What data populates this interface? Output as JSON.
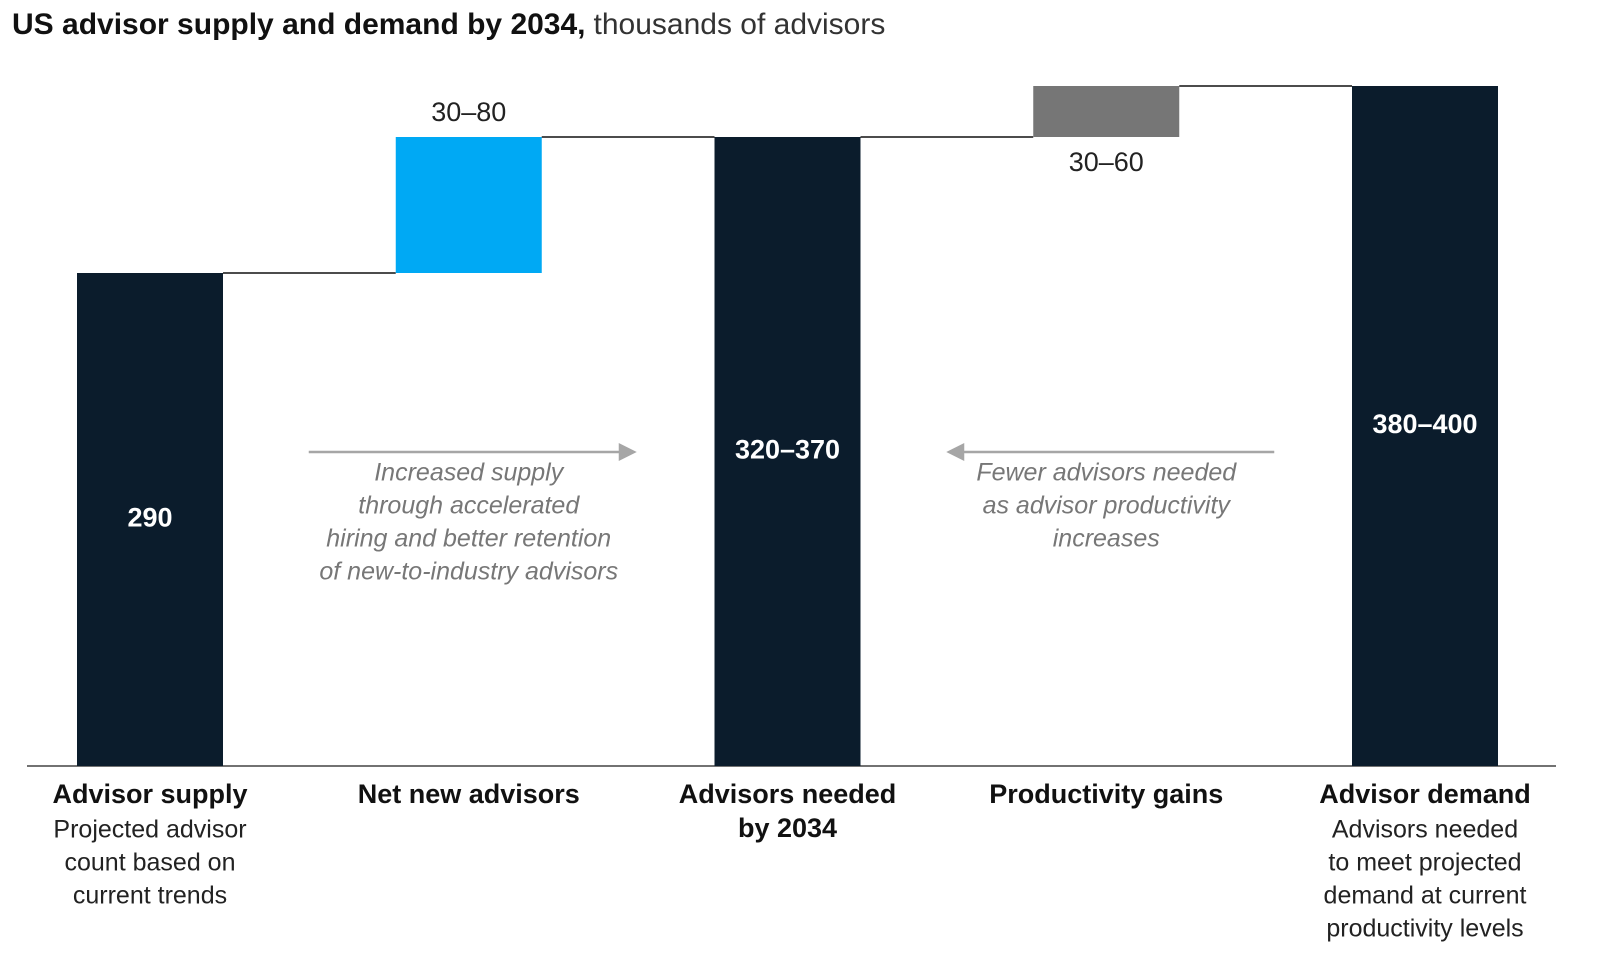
{
  "chart_data": {
    "type": "waterfall",
    "title": "US advisor supply and demand by 2034,",
    "subtitle": "thousands of advisors",
    "categories": [
      "Advisor supply",
      "Net new advisors",
      "Advisors needed by 2034",
      "Productivity gains",
      "Advisor demand"
    ],
    "category_lines": [
      [
        "Advisor supply"
      ],
      [
        "Net new advisors"
      ],
      [
        "Advisors needed",
        "by 2034"
      ],
      [
        "Productivity gains"
      ],
      [
        "Advisor demand"
      ]
    ],
    "category_notes": [
      [
        "Projected advisor",
        "count based on",
        "current trends"
      ],
      [],
      [],
      [],
      [
        "Advisors needed",
        "to meet projected",
        "demand at current",
        "productivity levels"
      ]
    ],
    "measures": [
      "total",
      "relative",
      "total",
      "relative",
      "total"
    ],
    "values": [
      290,
      80,
      370,
      30,
      400
    ],
    "value_labels": [
      "290",
      "30–80",
      "320–370",
      "30–60",
      "380–400"
    ],
    "label_positions": [
      "inside",
      "above",
      "inside",
      "below",
      "inside"
    ],
    "colors": [
      "#0b1c2c",
      "#00a9f4",
      "#0b1c2c",
      "#767676",
      "#0b1c2c"
    ],
    "annotations": [
      {
        "lines": [
          "Increased supply",
          "through accelerated",
          "hiring and better retention",
          "of new-to-industry advisors"
        ],
        "arrow": "right"
      },
      {
        "lines": [
          "Fewer advisors needed",
          "as advisor productivity",
          "increases"
        ],
        "arrow": "left"
      }
    ]
  }
}
